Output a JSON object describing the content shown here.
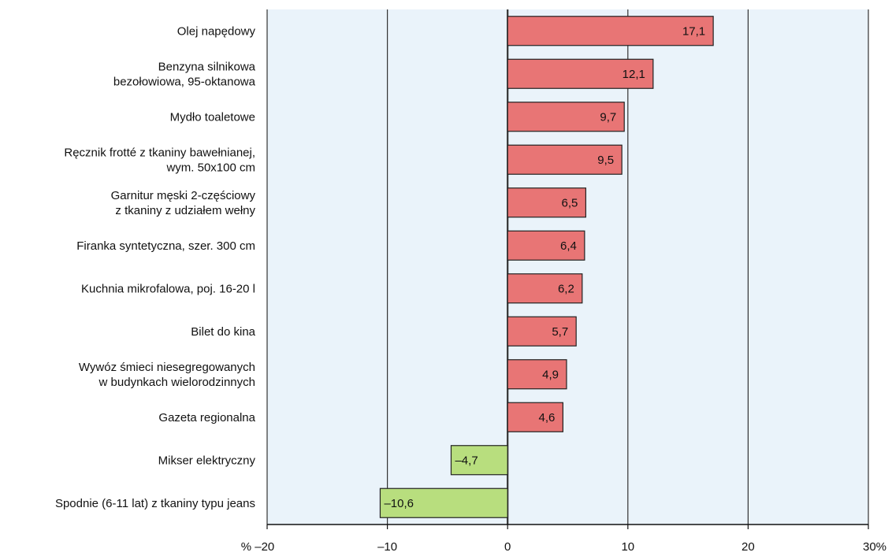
{
  "chart_data": {
    "type": "bar",
    "orientation": "horizontal",
    "title": "",
    "xlabel": "",
    "ylabel": "",
    "xlim": [
      -20,
      30
    ],
    "x_ticks": [
      -20,
      -10,
      0,
      10,
      20,
      30
    ],
    "x_tick_labels": [
      "% –20",
      "–10",
      "0",
      "10",
      "20",
      "30%"
    ],
    "grid": "vertical",
    "legend": "none",
    "categories": [
      [
        "Olej napędowy"
      ],
      [
        "Benzyna silnikowa",
        "bezołowiowa, 95-oktanowa"
      ],
      [
        "Mydło toaletowe"
      ],
      [
        "Ręcznik frotté z tkaniny bawełnianej,",
        "wym. 50x100 cm"
      ],
      [
        "Garnitur męski 2-częściowy",
        "z tkaniny z udziałem wełny"
      ],
      [
        "Firanka syntetyczna, szer. 300 cm"
      ],
      [
        "Kuchnia mikrofalowa, poj. 16-20 l"
      ],
      [
        "Bilet do kina"
      ],
      [
        "Wywóz śmieci niesegregowanych",
        "w budynkach wielorodzinnych"
      ],
      [
        "Gazeta regionalna"
      ],
      [
        "Mikser elektryczny"
      ],
      [
        "Spodnie (6-11 lat) z tkaniny typu jeans"
      ]
    ],
    "values": [
      17.1,
      12.1,
      9.7,
      9.5,
      6.5,
      6.4,
      6.2,
      5.7,
      4.9,
      4.6,
      -4.7,
      -10.6
    ],
    "value_labels": [
      "17,1",
      "12,1",
      "9,7",
      "9,5",
      "6,5",
      "6,4",
      "6,2",
      "5,7",
      "4,9",
      "4,6",
      "–4,7",
      "–10,6"
    ],
    "colors": {
      "positive": "#e87575",
      "negative": "#b8de7e",
      "plot_background": "#eaf3fa",
      "bar_border": "#222222",
      "grid": "#333333"
    }
  }
}
